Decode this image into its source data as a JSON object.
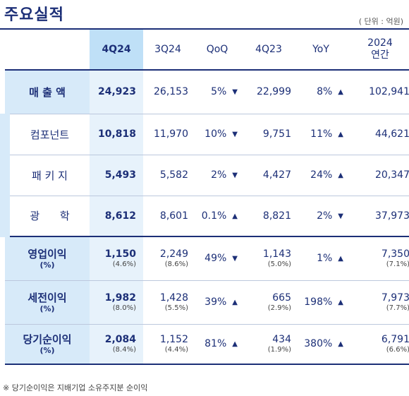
{
  "title": "주요실적",
  "unit": "( 단위 : 억원)",
  "columns": {
    "label": "",
    "c1": "4Q24",
    "c2": "3Q24",
    "c3": "QoQ",
    "c4": "4Q23",
    "c5": "YoY",
    "c6_line1": "2024",
    "c6_line2": "연간"
  },
  "rows": [
    {
      "label": "매 출 액",
      "sub": "",
      "q4_24": "24,923",
      "q4_24_r": "",
      "q3_24": "26,153",
      "q3_24_r": "",
      "qoq": "5%",
      "qoq_dir": "▼",
      "q4_23": "22,999",
      "q4_23_r": "",
      "yoy": "8%",
      "yoy_dir": "▲",
      "y2024": "102,941",
      "y2024_r": ""
    },
    {
      "label": "컴포넌트",
      "sub": "",
      "q4_24": "10,818",
      "q4_24_r": "",
      "q3_24": "11,970",
      "q3_24_r": "",
      "qoq": "10%",
      "qoq_dir": "▼",
      "q4_23": "9,751",
      "q4_23_r": "",
      "yoy": "11%",
      "yoy_dir": "▲",
      "y2024": "44,621",
      "y2024_r": ""
    },
    {
      "label": "패 키 지",
      "sub": "",
      "q4_24": "5,493",
      "q4_24_r": "",
      "q3_24": "5,582",
      "q3_24_r": "",
      "qoq": "2%",
      "qoq_dir": "▼",
      "q4_23": "4,427",
      "q4_23_r": "",
      "yoy": "24%",
      "yoy_dir": "▲",
      "y2024": "20,347",
      "y2024_r": ""
    },
    {
      "label": "광 학",
      "sub": "",
      "q4_24": "8,612",
      "q4_24_r": "",
      "q3_24": "8,601",
      "q3_24_r": "",
      "qoq": "0.1%",
      "qoq_dir": "▲",
      "q4_23": "8,821",
      "q4_23_r": "",
      "yoy": "2%",
      "yoy_dir": "▼",
      "y2024": "37,973",
      "y2024_r": ""
    },
    {
      "label": "영업이익",
      "sub": "(%)",
      "q4_24": "1,150",
      "q4_24_r": "(4.6%)",
      "q3_24": "2,249",
      "q3_24_r": "(8.6%)",
      "qoq": "49%",
      "qoq_dir": "▼",
      "q4_23": "1,143",
      "q4_23_r": "(5.0%)",
      "yoy": "1%",
      "yoy_dir": "▲",
      "y2024": "7,350",
      "y2024_r": "(7.1%)"
    },
    {
      "label": "세전이익",
      "sub": "(%)",
      "q4_24": "1,982",
      "q4_24_r": "(8.0%)",
      "q3_24": "1,428",
      "q3_24_r": "(5.5%)",
      "qoq": "39%",
      "qoq_dir": "▲",
      "q4_23": "665",
      "q4_23_r": "(2.9%)",
      "yoy": "198%",
      "yoy_dir": "▲",
      "y2024": "7,973",
      "y2024_r": "(7.7%)"
    },
    {
      "label": "당기순이익",
      "sub": "(%)",
      "q4_24": "2,084",
      "q4_24_r": "(8.4%)",
      "q3_24": "1,152",
      "q3_24_r": "(4.4%)",
      "qoq": "81%",
      "qoq_dir": "▲",
      "q4_23": "434",
      "q4_23_r": "(1.9%)",
      "yoy": "380%",
      "yoy_dir": "▲",
      "y2024": "6,791",
      "y2024_r": "(6.6%)"
    }
  ],
  "note": "※ 당기순이익은 지배기업 소유주지분 순이익"
}
